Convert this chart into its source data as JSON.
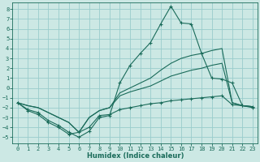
{
  "xlabel": "Humidex (Indice chaleur)",
  "background_color": "#cce8e4",
  "grid_color": "#99cccc",
  "line_color": "#1a6b5a",
  "x": [
    0,
    1,
    2,
    3,
    4,
    5,
    6,
    7,
    8,
    9,
    10,
    11,
    12,
    13,
    14,
    15,
    16,
    17,
    18,
    19,
    20,
    21,
    22,
    23
  ],
  "line_peak": [
    -1.5,
    -2.2,
    -2.5,
    -3.3,
    -3.8,
    -4.5,
    -5.0,
    -4.4,
    -3.0,
    -2.8,
    0.5,
    2.3,
    3.5,
    4.6,
    6.5,
    8.3,
    6.6,
    6.5,
    3.5,
    1.0,
    0.9,
    0.5,
    -1.8,
    -2.0
  ],
  "line_upper": [
    -1.5,
    -1.8,
    -2.0,
    -2.5,
    -3.0,
    -3.5,
    -4.5,
    -3.0,
    -2.3,
    -2.0,
    -0.5,
    0.0,
    0.5,
    1.0,
    1.8,
    2.5,
    3.0,
    3.3,
    3.5,
    3.8,
    4.0,
    -1.5,
    -1.8,
    -1.9
  ],
  "line_mid": [
    -1.5,
    -1.8,
    -2.0,
    -2.5,
    -3.0,
    -3.5,
    -4.5,
    -3.0,
    -2.3,
    -2.0,
    -0.8,
    -0.4,
    -0.1,
    0.2,
    0.7,
    1.2,
    1.5,
    1.8,
    2.0,
    2.3,
    2.5,
    -1.5,
    -1.8,
    -1.9
  ],
  "line_lower": [
    -1.5,
    -2.3,
    -2.7,
    -3.5,
    -4.0,
    -4.7,
    -4.5,
    -4.0,
    -2.8,
    -2.7,
    -2.2,
    -2.0,
    -1.8,
    -1.6,
    -1.5,
    -1.3,
    -1.2,
    -1.1,
    -1.0,
    -0.9,
    -0.8,
    -1.7,
    -1.8,
    -1.9
  ],
  "ylim": [
    -5.6,
    8.7
  ],
  "xlim": [
    -0.5,
    23.5
  ],
  "yticks": [
    -5,
    -4,
    -3,
    -2,
    -1,
    0,
    1,
    2,
    3,
    4,
    5,
    6,
    7,
    8
  ],
  "xticks": [
    0,
    1,
    2,
    3,
    4,
    5,
    6,
    7,
    8,
    9,
    10,
    11,
    12,
    13,
    14,
    15,
    16,
    17,
    18,
    19,
    20,
    21,
    22,
    23
  ]
}
